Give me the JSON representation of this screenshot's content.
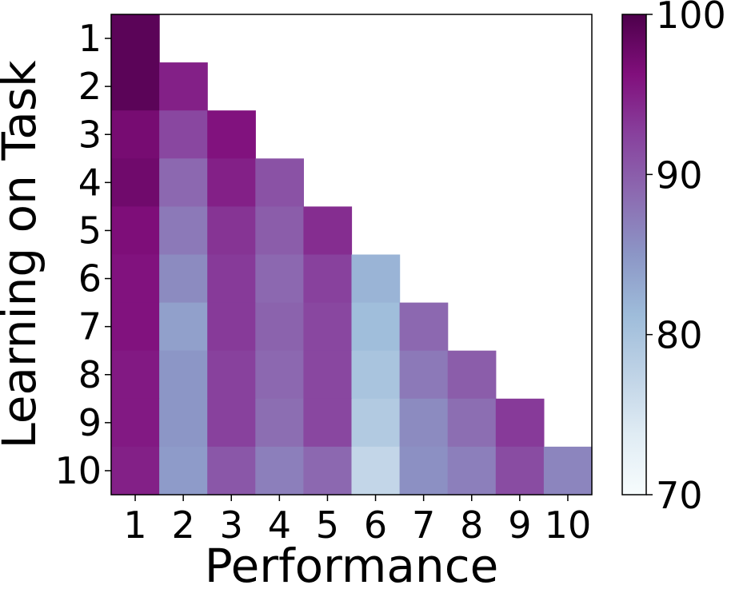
{
  "chart_data": {
    "type": "heatmap",
    "title": "",
    "xlabel": "Performance",
    "ylabel": "Learning on Task",
    "x_categories": [
      "1",
      "2",
      "3",
      "4",
      "5",
      "6",
      "7",
      "8",
      "9",
      "10"
    ],
    "y_categories": [
      "1",
      "2",
      "3",
      "4",
      "5",
      "6",
      "7",
      "8",
      "9",
      "10"
    ],
    "values": [
      [
        99.0,
        null,
        null,
        null,
        null,
        null,
        null,
        null,
        null,
        null
      ],
      [
        99.0,
        95.0,
        null,
        null,
        null,
        null,
        null,
        null,
        null,
        null
      ],
      [
        97.0,
        92.0,
        96.0,
        null,
        null,
        null,
        null,
        null,
        null,
        null
      ],
      [
        97.5,
        89.0,
        95.0,
        91.0,
        null,
        null,
        null,
        null,
        null,
        null
      ],
      [
        96.5,
        87.5,
        93.5,
        90.0,
        94.0,
        null,
        null,
        null,
        null,
        null
      ],
      [
        96.0,
        86.0,
        93.0,
        89.0,
        92.5,
        82.0,
        null,
        null,
        null,
        null
      ],
      [
        96.0,
        84.0,
        93.0,
        89.5,
        92.0,
        81.0,
        89.0,
        null,
        null,
        null
      ],
      [
        95.5,
        85.0,
        92.5,
        89.0,
        92.0,
        80.0,
        87.5,
        90.0,
        null,
        null
      ],
      [
        95.5,
        85.0,
        92.5,
        88.5,
        92.0,
        79.0,
        86.0,
        88.5,
        93.0,
        null
      ],
      [
        95.0,
        84.5,
        90.5,
        87.0,
        89.0,
        77.0,
        85.5,
        87.0,
        91.5,
        86.5
      ]
    ],
    "colorbar": {
      "min": 70,
      "max": 100,
      "ticks": [
        70,
        80,
        90,
        100
      ]
    },
    "colormap": "BuPu",
    "grid": false,
    "colors": {
      "stops": [
        "#f7fcfd",
        "#e0ecf4",
        "#bfd3e6",
        "#9ebcda",
        "#8c96c6",
        "#8c6bb1",
        "#88419d",
        "#810f7c",
        "#4d004b"
      ]
    }
  }
}
